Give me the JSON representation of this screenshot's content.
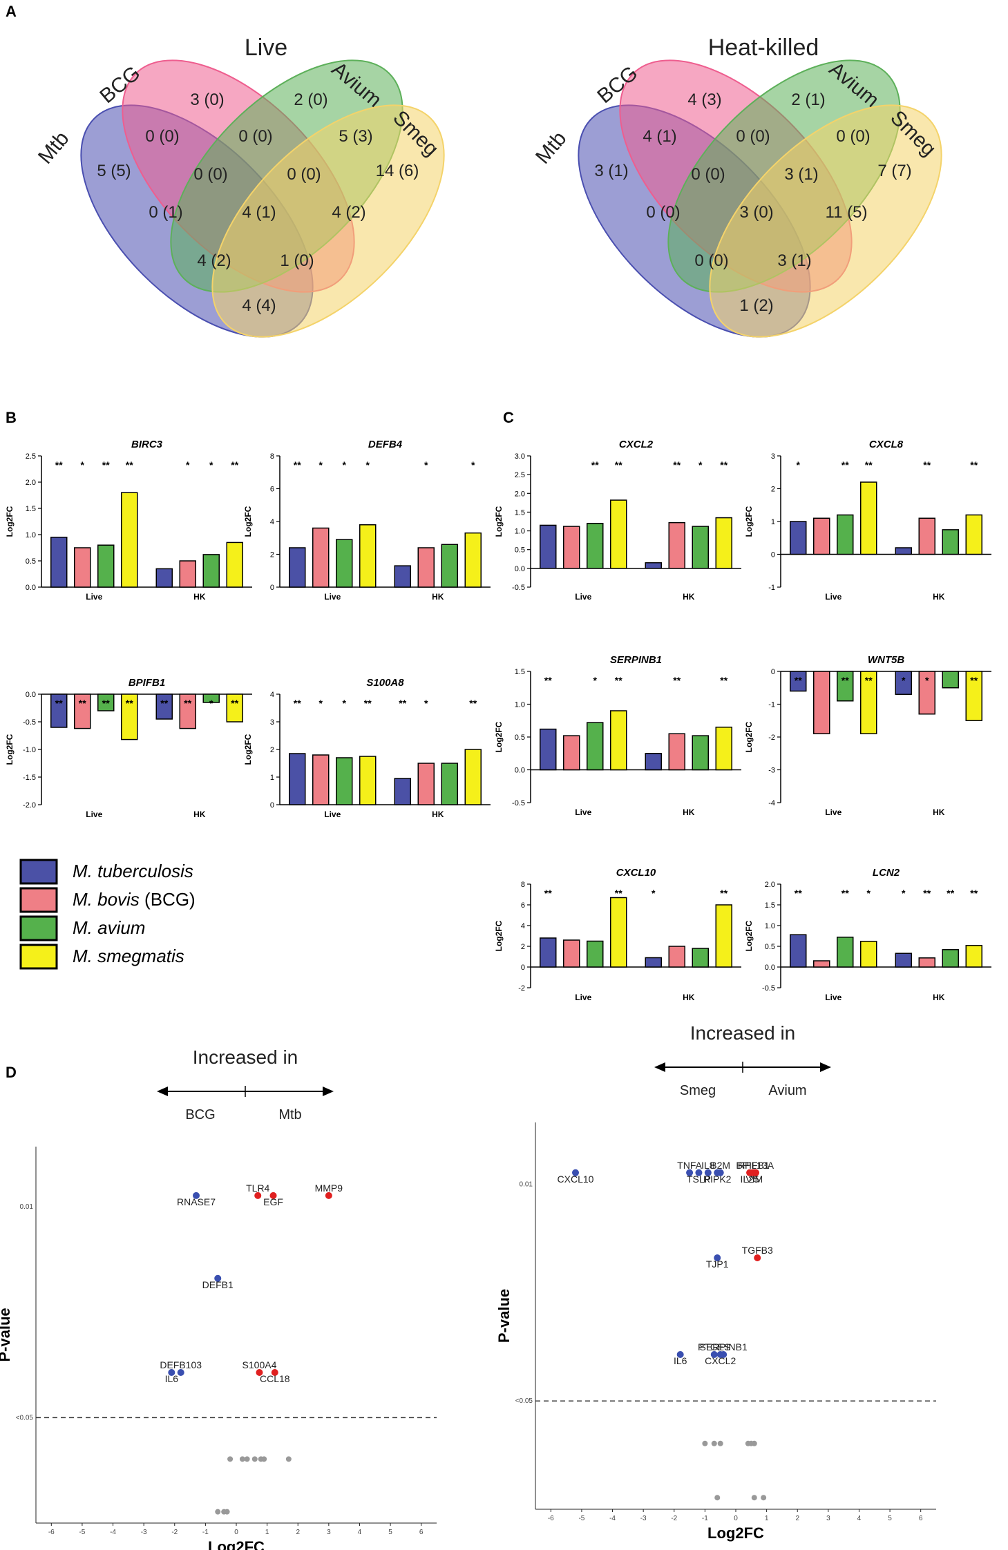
{
  "colors": {
    "mtb": "#4b51a6",
    "bcg": "#ef7f86",
    "avium": "#55b14c",
    "smeg": "#f5f01a",
    "venn_mtb": "#4a4fb0",
    "venn_bcg": "#ee5e8f",
    "venn_avium": "#5db05a",
    "venn_smeg": "#f4d36a",
    "point_up": "#e02020",
    "point_down": "#3a4fb0",
    "point_ns": "#999999"
  },
  "panel_labels": {
    "a": "A",
    "b": "B",
    "c": "C",
    "d": "D"
  },
  "legend": {
    "entries": [
      {
        "name": "M. tuberculosis",
        "suffix": "",
        "color_key": "mtb"
      },
      {
        "name": "M. bovis",
        "suffix": " (BCG)",
        "color_key": "bcg"
      },
      {
        "name": "M. avium",
        "suffix": "",
        "color_key": "avium"
      },
      {
        "name": "M. smegmatis",
        "suffix": "",
        "color_key": "smeg"
      }
    ]
  },
  "chart_data": [
    {
      "type": "venn",
      "title": "Live",
      "sets": [
        "Mtb",
        "BCG",
        "Avium",
        "Smeg"
      ],
      "regions": {
        "mtb_only": "5 (5)",
        "bcg_only": "3 (0)",
        "avium_only": "2 (0)",
        "smeg_only": "14 (6)",
        "mtb_bcg": "0 (0)",
        "bcg_avium": "0 (0)",
        "avium_smeg": "5 (3)",
        "mtb_bcg_avium": "0 (0)",
        "bcg_avium_smeg": "0 (0)",
        "mtb_avium": "0 (1)",
        "all": "4 (1)",
        "bcg_smeg": "4 (2)",
        "mtb_avium_smeg": "4 (2)",
        "mtb_bcg_smeg": "1 (0)",
        "mtb_smeg": "4 (4)"
      }
    },
    {
      "type": "venn",
      "title": "Heat-killed",
      "sets": [
        "Mtb",
        "BCG",
        "Avium",
        "Smeg"
      ],
      "regions": {
        "mtb_only": "3 (1)",
        "bcg_only": "4 (3)",
        "avium_only": "2 (1)",
        "smeg_only": "7 (7)",
        "mtb_bcg": "4 (1)",
        "bcg_avium": "0 (0)",
        "avium_smeg": "0 (0)",
        "mtb_bcg_avium": "0 (0)",
        "bcg_avium_smeg": "3 (1)",
        "mtb_avium": "0 (0)",
        "all": "3 (0)",
        "bcg_smeg": "11 (5)",
        "mtb_avium_smeg": "0 (0)",
        "mtb_bcg_smeg": "3 (1)",
        "mtb_smeg": "1 (2)"
      }
    },
    {
      "type": "bar",
      "panel": "B",
      "title": "BIRC3",
      "ylabel": "Log2FC",
      "ylim": [
        0,
        2.5
      ],
      "yticks": [
        "0.0",
        "0.5",
        "1.0",
        "1.5",
        "2.0",
        "2.5"
      ],
      "groups": [
        "Live",
        "HK"
      ],
      "series": [
        {
          "name": "M. tuberculosis",
          "values": [
            0.95,
            0.35
          ],
          "sig": [
            "**",
            ""
          ]
        },
        {
          "name": "M. bovis (BCG)",
          "values": [
            0.75,
            0.5
          ],
          "sig": [
            "*",
            "*"
          ]
        },
        {
          "name": "M. avium",
          "values": [
            0.8,
            0.62
          ],
          "sig": [
            "**",
            "*"
          ]
        },
        {
          "name": "M. smegmatis",
          "values": [
            1.8,
            0.85
          ],
          "sig": [
            "**",
            "**"
          ]
        }
      ]
    },
    {
      "type": "bar",
      "panel": "B",
      "title": "DEFB4",
      "ylabel": "Log2FC",
      "ylim": [
        0,
        8
      ],
      "yticks": [
        "0",
        "2",
        "4",
        "6",
        "8"
      ],
      "groups": [
        "Live",
        "HK"
      ],
      "series": [
        {
          "name": "M. tuberculosis",
          "values": [
            2.4,
            1.3
          ],
          "sig": [
            "**",
            ""
          ]
        },
        {
          "name": "M. bovis (BCG)",
          "values": [
            3.6,
            2.4
          ],
          "sig": [
            "*",
            "*"
          ]
        },
        {
          "name": "M. avium",
          "values": [
            2.9,
            2.6
          ],
          "sig": [
            "*",
            ""
          ]
        },
        {
          "name": "M. smegmatis",
          "values": [
            3.8,
            3.3
          ],
          "sig": [
            "*",
            "*"
          ]
        }
      ]
    },
    {
      "type": "bar",
      "panel": "B",
      "title": "BPIFB1",
      "ylabel": "Log2FC",
      "ylim": [
        -2.0,
        0
      ],
      "yticks": [
        "-2.0",
        "-1.5",
        "-1.0",
        "-0.5",
        "0.0"
      ],
      "groups": [
        "Live",
        "HK"
      ],
      "series": [
        {
          "name": "M. tuberculosis",
          "values": [
            -0.6,
            -0.45
          ],
          "sig": [
            "**",
            "**"
          ]
        },
        {
          "name": "M. bovis (BCG)",
          "values": [
            -0.62,
            -0.62
          ],
          "sig": [
            "**",
            "**"
          ]
        },
        {
          "name": "M. avium",
          "values": [
            -0.3,
            -0.15
          ],
          "sig": [
            "**",
            "*"
          ]
        },
        {
          "name": "M. smegmatis",
          "values": [
            -0.82,
            -0.5
          ],
          "sig": [
            "**",
            "**"
          ]
        }
      ]
    },
    {
      "type": "bar",
      "panel": "B",
      "title": "S100A8",
      "ylabel": "Log2FC",
      "ylim": [
        0,
        4
      ],
      "yticks": [
        "0",
        "1",
        "2",
        "3",
        "4"
      ],
      "groups": [
        "Live",
        "HK"
      ],
      "series": [
        {
          "name": "M. tuberculosis",
          "values": [
            1.85,
            0.95
          ],
          "sig": [
            "**",
            "**"
          ]
        },
        {
          "name": "M. bovis (BCG)",
          "values": [
            1.8,
            1.5
          ],
          "sig": [
            "*",
            "*"
          ]
        },
        {
          "name": "M. avium",
          "values": [
            1.7,
            1.5
          ],
          "sig": [
            "*",
            ""
          ]
        },
        {
          "name": "M. smegmatis",
          "values": [
            1.75,
            2.0
          ],
          "sig": [
            "**",
            "**"
          ]
        }
      ]
    },
    {
      "type": "bar",
      "panel": "C",
      "title": "CXCL2",
      "ylabel": "Log2FC",
      "ylim": [
        -0.5,
        3.0
      ],
      "yticks": [
        "-0.5",
        "0.0",
        "0.5",
        "1.0",
        "1.5",
        "2.0",
        "2.5",
        "3.0"
      ],
      "groups": [
        "Live",
        "HK"
      ],
      "series": [
        {
          "name": "M. tuberculosis",
          "values": [
            1.15,
            0.15
          ],
          "sig": [
            "",
            ""
          ]
        },
        {
          "name": "M. bovis (BCG)",
          "values": [
            1.12,
            1.22
          ],
          "sig": [
            "",
            "**"
          ]
        },
        {
          "name": "M. avium",
          "values": [
            1.2,
            1.12
          ],
          "sig": [
            "**",
            "*"
          ]
        },
        {
          "name": "M. smegmatis",
          "values": [
            1.82,
            1.35
          ],
          "sig": [
            "**",
            "**"
          ]
        }
      ]
    },
    {
      "type": "bar",
      "panel": "C",
      "title": "CXCL8",
      "ylabel": "Log2FC",
      "ylim": [
        -1,
        3
      ],
      "yticks": [
        "-1",
        "0",
        "1",
        "2",
        "3"
      ],
      "groups": [
        "Live",
        "HK"
      ],
      "series": [
        {
          "name": "M. tuberculosis",
          "values": [
            1.0,
            0.2
          ],
          "sig": [
            "*",
            ""
          ]
        },
        {
          "name": "M. bovis (BCG)",
          "values": [
            1.1,
            1.1
          ],
          "sig": [
            "",
            "**"
          ]
        },
        {
          "name": "M. avium",
          "values": [
            1.2,
            0.75
          ],
          "sig": [
            "**",
            ""
          ]
        },
        {
          "name": "M. smegmatis",
          "values": [
            2.2,
            1.2
          ],
          "sig": [
            "**",
            "**"
          ]
        }
      ]
    },
    {
      "type": "bar",
      "panel": "C",
      "title": "SERPINB1",
      "ylabel": "Log2FC",
      "ylim": [
        -0.5,
        1.5
      ],
      "yticks": [
        "-0.5",
        "0.0",
        "0.5",
        "1.0",
        "1.5"
      ],
      "groups": [
        "Live",
        "HK"
      ],
      "series": [
        {
          "name": "M. tuberculosis",
          "values": [
            0.62,
            0.25
          ],
          "sig": [
            "**",
            ""
          ]
        },
        {
          "name": "M. bovis (BCG)",
          "values": [
            0.52,
            0.55
          ],
          "sig": [
            "",
            "**"
          ]
        },
        {
          "name": "M. avium",
          "values": [
            0.72,
            0.52
          ],
          "sig": [
            "*",
            ""
          ]
        },
        {
          "name": "M. smegmatis",
          "values": [
            0.9,
            0.65
          ],
          "sig": [
            "**",
            "**"
          ]
        }
      ]
    },
    {
      "type": "bar",
      "panel": "C",
      "title": "WNT5B",
      "ylabel": "Log2FC",
      "ylim": [
        -4,
        0
      ],
      "yticks": [
        "-4",
        "-3",
        "-2",
        "-1",
        "0"
      ],
      "groups": [
        "Live",
        "HK"
      ],
      "series": [
        {
          "name": "M. tuberculosis",
          "values": [
            -0.6,
            -0.7
          ],
          "sig": [
            "**",
            "*"
          ]
        },
        {
          "name": "M. bovis (BCG)",
          "values": [
            -1.9,
            -1.3
          ],
          "sig": [
            "",
            "*"
          ]
        },
        {
          "name": "M. avium",
          "values": [
            -0.9,
            -0.5
          ],
          "sig": [
            "**",
            ""
          ]
        },
        {
          "name": "M. smegmatis",
          "values": [
            -1.9,
            -1.5
          ],
          "sig": [
            "**",
            "**"
          ]
        }
      ]
    },
    {
      "type": "bar",
      "panel": "C",
      "title": "CXCL10",
      "ylabel": "Log2FC",
      "ylim": [
        -2,
        8
      ],
      "yticks": [
        "-2",
        "0",
        "2",
        "4",
        "6",
        "8"
      ],
      "groups": [
        "Live",
        "HK"
      ],
      "series": [
        {
          "name": "M. tuberculosis",
          "values": [
            2.8,
            0.9
          ],
          "sig": [
            "**",
            "*"
          ]
        },
        {
          "name": "M. bovis (BCG)",
          "values": [
            2.6,
            2.0
          ],
          "sig": [
            "",
            ""
          ]
        },
        {
          "name": "M. avium",
          "values": [
            2.5,
            1.8
          ],
          "sig": [
            "",
            ""
          ]
        },
        {
          "name": "M. smegmatis",
          "values": [
            6.7,
            6.0
          ],
          "sig": [
            "**",
            "**"
          ]
        }
      ]
    },
    {
      "type": "bar",
      "panel": "C",
      "title": "LCN2",
      "ylabel": "Log2FC",
      "ylim": [
        -0.5,
        2.0
      ],
      "yticks": [
        "-0.5",
        "0.0",
        "0.5",
        "1.0",
        "1.5",
        "2.0"
      ],
      "groups": [
        "Live",
        "HK"
      ],
      "series": [
        {
          "name": "M. tuberculosis",
          "values": [
            0.78,
            0.33
          ],
          "sig": [
            "**",
            "*"
          ]
        },
        {
          "name": "M. bovis (BCG)",
          "values": [
            0.15,
            0.22
          ],
          "sig": [
            "",
            "**"
          ]
        },
        {
          "name": "M. avium",
          "values": [
            0.72,
            0.42
          ],
          "sig": [
            "**",
            "**"
          ]
        },
        {
          "name": "M. smegmatis",
          "values": [
            0.62,
            0.52
          ],
          "sig": [
            "*",
            "**"
          ]
        }
      ]
    },
    {
      "type": "scatter",
      "panel": "D",
      "title": "Increased in",
      "left_label": "BCG",
      "right_label": "Mtb",
      "xlabel": "Log2FC",
      "ylabel": "P-value",
      "xlim": [
        -6.5,
        6.5
      ],
      "xticks": [
        -6,
        -5,
        -4,
        -3,
        -2,
        -1,
        0,
        1,
        2,
        3,
        4,
        5,
        6
      ],
      "y_ticks": [
        "0.01",
        "<0.05"
      ],
      "labeled_points": [
        {
          "x": -1.3,
          "y": 0.008,
          "label": "RNASE7",
          "dir": "down"
        },
        {
          "x": 0.7,
          "y": 0.008,
          "label": "TLR4",
          "dir": "up"
        },
        {
          "x": 1.2,
          "y": 0.008,
          "label": "EGF",
          "dir": "up"
        },
        {
          "x": 3.0,
          "y": 0.008,
          "label": "MMP9",
          "dir": "up"
        },
        {
          "x": -0.6,
          "y": 0.017,
          "label": "DEFB1",
          "dir": "down"
        },
        {
          "x": -1.8,
          "y": 0.03,
          "label": "DEFB103",
          "dir": "down"
        },
        {
          "x": -2.1,
          "y": 0.03,
          "label": "IL6",
          "dir": "down"
        },
        {
          "x": 0.75,
          "y": 0.03,
          "label": "S100A4",
          "dir": "up"
        },
        {
          "x": 1.25,
          "y": 0.03,
          "label": "CCL18",
          "dir": "up"
        }
      ],
      "ns_points": [
        {
          "x": -0.2,
          "y": 0.08
        },
        {
          "x": 0.2,
          "y": 0.08
        },
        {
          "x": 0.35,
          "y": 0.08
        },
        {
          "x": 0.6,
          "y": 0.08
        },
        {
          "x": 0.8,
          "y": 0.08
        },
        {
          "x": 0.9,
          "y": 0.08
        },
        {
          "x": 1.7,
          "y": 0.08
        },
        {
          "x": -0.6,
          "y": 0.2
        },
        {
          "x": -0.4,
          "y": 0.2
        },
        {
          "x": -0.3,
          "y": 0.2
        }
      ]
    },
    {
      "type": "scatter",
      "panel": "D",
      "title": "Increased in",
      "left_label": "Smeg",
      "right_label": "Avium",
      "xlabel": "Log2FC",
      "ylabel": "P-value",
      "xlim": [
        -6.5,
        6.5
      ],
      "xticks": [
        -6,
        -5,
        -4,
        -3,
        -2,
        -1,
        0,
        1,
        2,
        3,
        4,
        5,
        6
      ],
      "y_ticks": [
        "0.01",
        "<0.05"
      ],
      "labeled_points": [
        {
          "x": -5.2,
          "y": 0.008,
          "label": "CXCL10",
          "dir": "down"
        },
        {
          "x": -1.5,
          "y": 0.008,
          "label": "TNFA",
          "dir": "down"
        },
        {
          "x": -1.2,
          "y": 0.008,
          "label": "TSLP",
          "dir": "down"
        },
        {
          "x": -0.9,
          "y": 0.008,
          "label": "IL8",
          "dir": "down"
        },
        {
          "x": -0.6,
          "y": 0.008,
          "label": "RIPK2",
          "dir": "down"
        },
        {
          "x": -0.5,
          "y": 0.008,
          "label": "B2M",
          "dir": "down"
        },
        {
          "x": 0.45,
          "y": 0.008,
          "label": "IL25",
          "dir": "up"
        },
        {
          "x": 0.55,
          "y": 0.008,
          "label": "BPIFB1",
          "dir": "up"
        },
        {
          "x": 0.6,
          "y": 0.008,
          "label": "VIM",
          "dir": "up"
        },
        {
          "x": 0.65,
          "y": 0.008,
          "label": "RPL13A",
          "dir": "up"
        },
        {
          "x": -0.6,
          "y": 0.017,
          "label": "TJP1",
          "dir": "down"
        },
        {
          "x": 0.7,
          "y": 0.017,
          "label": "TGFB3",
          "dir": "up"
        },
        {
          "x": -1.8,
          "y": 0.03,
          "label": "IL6",
          "dir": "down"
        },
        {
          "x": -0.7,
          "y": 0.03,
          "label": "PTGES",
          "dir": "down"
        },
        {
          "x": -0.5,
          "y": 0.03,
          "label": "CXCL2",
          "dir": "down"
        },
        {
          "x": -0.4,
          "y": 0.03,
          "label": "SERPINB1",
          "dir": "down"
        }
      ],
      "ns_points": [
        {
          "x": -1.0,
          "y": 0.08
        },
        {
          "x": -0.7,
          "y": 0.08
        },
        {
          "x": -0.5,
          "y": 0.08
        },
        {
          "x": 0.4,
          "y": 0.08
        },
        {
          "x": 0.5,
          "y": 0.08
        },
        {
          "x": 0.6,
          "y": 0.08
        },
        {
          "x": -0.6,
          "y": 0.2
        },
        {
          "x": 0.6,
          "y": 0.2
        },
        {
          "x": 0.9,
          "y": 0.2
        }
      ]
    }
  ]
}
